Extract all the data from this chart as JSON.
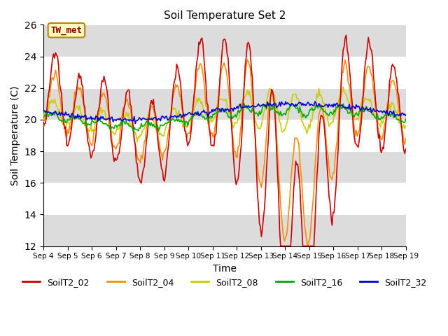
{
  "title": "Soil Temperature Set 2",
  "xlabel": "Time",
  "ylabel": "Soil Temperature (C)",
  "ylim": [
    12,
    26
  ],
  "x_tick_labels": [
    "Sep 4",
    "Sep 5",
    "Sep 6",
    "Sep 7",
    "Sep 8",
    "Sep 9",
    "Sep 10",
    "Sep 11",
    "Sep 12",
    "Sep 13",
    "Sep 14",
    "Sep 15",
    "Sep 16",
    "Sep 17",
    "Sep 18",
    "Sep 19"
  ],
  "annotation_text": "TW_met",
  "annotation_color": "#8B0000",
  "annotation_bg": "#FFFFC0",
  "annotation_border": "#B8860B",
  "plot_bg": "#FFFFFF",
  "band_color": "#DCDCDC",
  "series_colors": {
    "SoilT2_02": "#CC0000",
    "SoilT2_04": "#FF8C00",
    "SoilT2_08": "#CCCC00",
    "SoilT2_16": "#00AA00",
    "SoilT2_32": "#0000CC"
  },
  "lw": 1.2
}
